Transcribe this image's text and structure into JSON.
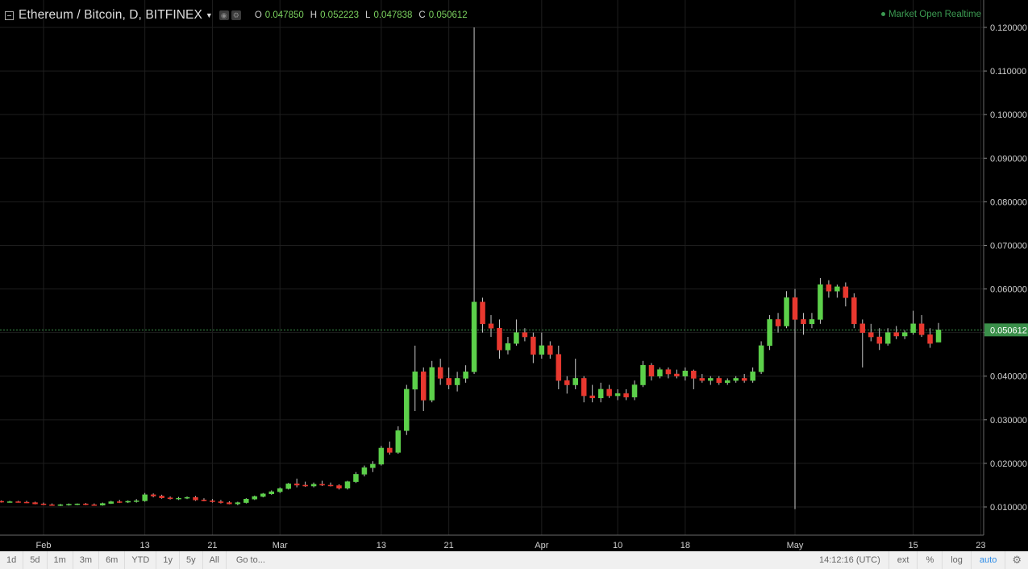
{
  "legend": {
    "symbol": "Ethereum / Bitcoin, D, BITFINEX",
    "open_label": "O",
    "open": "0.047850",
    "high_label": "H",
    "high": "0.052223",
    "low_label": "L",
    "low": "0.047838",
    "close_label": "C",
    "close": "0.050612"
  },
  "market_status": "Market Open Realtime",
  "last_price_label": "0.050612",
  "colors": {
    "background": "#000000",
    "grid": "#1e1e1e",
    "up": "#5cd04a",
    "down": "#e8382f",
    "wick": "#c8c8c8",
    "axis_text": "#d0d0d0",
    "last_price_tag": "#3a8f4a"
  },
  "bottom_bar": {
    "ranges": [
      "1d",
      "5d",
      "1m",
      "3m",
      "6m",
      "YTD",
      "1y",
      "5y",
      "All"
    ],
    "goto": "Go to...",
    "clock": "14:12:16 (UTC)",
    "ext": "ext",
    "percent": "%",
    "log": "log",
    "auto": "auto"
  },
  "chart_data": {
    "type": "candlestick",
    "title": "Ethereum / Bitcoin, D, BITFINEX",
    "ylim": [
      0.0035,
      0.1205
    ],
    "y_ticks": [
      "0.010000",
      "0.020000",
      "0.030000",
      "0.040000",
      "0.050000",
      "0.060000",
      "0.070000",
      "0.080000",
      "0.090000",
      "0.100000",
      "0.110000",
      "0.120000"
    ],
    "y_tick_values": [
      0.01,
      0.02,
      0.03,
      0.04,
      0.05,
      0.06,
      0.07,
      0.08,
      0.09,
      0.1,
      0.11,
      0.12
    ],
    "x_ticks": [
      {
        "label": "Feb",
        "date": "2017-02-01"
      },
      {
        "label": "13",
        "date": "2017-02-13"
      },
      {
        "label": "21",
        "date": "2017-02-21"
      },
      {
        "label": "Mar",
        "date": "2017-03-01"
      },
      {
        "label": "13",
        "date": "2017-03-13"
      },
      {
        "label": "21",
        "date": "2017-03-21"
      },
      {
        "label": "Apr",
        "date": "2017-04-01"
      },
      {
        "label": "10",
        "date": "2017-04-10"
      },
      {
        "label": "18",
        "date": "2017-04-18"
      },
      {
        "label": "May",
        "date": "2017-05-01"
      },
      {
        "label": "15",
        "date": "2017-05-15"
      },
      {
        "label": "23",
        "date": "2017-05-23"
      }
    ],
    "x_range": [
      "2017-01-27",
      "2017-05-24"
    ],
    "grid": true,
    "last_price": 0.050612,
    "columns": [
      "date",
      "open",
      "high",
      "low",
      "close"
    ],
    "candles": [
      [
        "2017-01-27",
        0.0113,
        0.0115,
        0.011,
        0.0111
      ],
      [
        "2017-01-28",
        0.0111,
        0.0114,
        0.011,
        0.0112
      ],
      [
        "2017-01-29",
        0.0112,
        0.0114,
        0.011,
        0.0111
      ],
      [
        "2017-01-30",
        0.0111,
        0.0114,
        0.0109,
        0.011
      ],
      [
        "2017-01-31",
        0.011,
        0.0112,
        0.0106,
        0.0107
      ],
      [
        "2017-02-01",
        0.0107,
        0.011,
        0.0104,
        0.0105
      ],
      [
        "2017-02-02",
        0.0105,
        0.0108,
        0.0103,
        0.0104
      ],
      [
        "2017-02-03",
        0.0104,
        0.0107,
        0.0102,
        0.0105
      ],
      [
        "2017-02-04",
        0.0105,
        0.0108,
        0.0103,
        0.0106
      ],
      [
        "2017-02-05",
        0.0106,
        0.0108,
        0.0104,
        0.0107
      ],
      [
        "2017-02-06",
        0.0107,
        0.0109,
        0.0104,
        0.0105
      ],
      [
        "2017-02-07",
        0.0105,
        0.0108,
        0.0103,
        0.0104
      ],
      [
        "2017-02-08",
        0.0104,
        0.011,
        0.0103,
        0.0108
      ],
      [
        "2017-02-09",
        0.0108,
        0.0114,
        0.0107,
        0.0112
      ],
      [
        "2017-02-10",
        0.0112,
        0.0116,
        0.0109,
        0.0111
      ],
      [
        "2017-02-11",
        0.0111,
        0.0115,
        0.0109,
        0.0113
      ],
      [
        "2017-02-12",
        0.0113,
        0.0118,
        0.011,
        0.0114
      ],
      [
        "2017-02-13",
        0.0114,
        0.0132,
        0.0112,
        0.0128
      ],
      [
        "2017-02-14",
        0.0128,
        0.0131,
        0.0122,
        0.0125
      ],
      [
        "2017-02-15",
        0.0125,
        0.0128,
        0.0119,
        0.0121
      ],
      [
        "2017-02-16",
        0.0121,
        0.0124,
        0.0117,
        0.0119
      ],
      [
        "2017-02-17",
        0.0119,
        0.0123,
        0.0116,
        0.012
      ],
      [
        "2017-02-18",
        0.012,
        0.0124,
        0.0118,
        0.0122
      ],
      [
        "2017-02-19",
        0.0122,
        0.0125,
        0.0114,
        0.0116
      ],
      [
        "2017-02-20",
        0.0116,
        0.012,
        0.0113,
        0.0114
      ],
      [
        "2017-02-21",
        0.0114,
        0.0118,
        0.011,
        0.0112
      ],
      [
        "2017-02-22",
        0.0112,
        0.0116,
        0.0108,
        0.011
      ],
      [
        "2017-02-23",
        0.011,
        0.0113,
        0.0106,
        0.0107
      ],
      [
        "2017-02-24",
        0.0107,
        0.0112,
        0.0104,
        0.011
      ],
      [
        "2017-02-25",
        0.011,
        0.012,
        0.0108,
        0.0118
      ],
      [
        "2017-02-26",
        0.0118,
        0.0126,
        0.0116,
        0.0124
      ],
      [
        "2017-02-27",
        0.0124,
        0.0132,
        0.0122,
        0.013
      ],
      [
        "2017-02-28",
        0.013,
        0.0138,
        0.0128,
        0.0135
      ],
      [
        "2017-03-01",
        0.0135,
        0.0145,
        0.0132,
        0.0142
      ],
      [
        "2017-03-02",
        0.0142,
        0.0155,
        0.014,
        0.0153
      ],
      [
        "2017-03-03",
        0.0153,
        0.0165,
        0.0145,
        0.015
      ],
      [
        "2017-03-04",
        0.015,
        0.0158,
        0.0146,
        0.0148
      ],
      [
        "2017-03-05",
        0.0148,
        0.0156,
        0.0145,
        0.0152
      ],
      [
        "2017-03-06",
        0.0152,
        0.016,
        0.0148,
        0.015
      ],
      [
        "2017-03-07",
        0.015,
        0.0156,
        0.0147,
        0.0149
      ],
      [
        "2017-03-08",
        0.0149,
        0.0152,
        0.014,
        0.0143
      ],
      [
        "2017-03-09",
        0.0143,
        0.016,
        0.014,
        0.0158
      ],
      [
        "2017-03-10",
        0.0158,
        0.018,
        0.0155,
        0.0175
      ],
      [
        "2017-03-11",
        0.0175,
        0.0195,
        0.017,
        0.019
      ],
      [
        "2017-03-12",
        0.019,
        0.0205,
        0.018,
        0.0198
      ],
      [
        "2017-03-13",
        0.0198,
        0.024,
        0.0195,
        0.0235
      ],
      [
        "2017-03-14",
        0.0235,
        0.025,
        0.022,
        0.0225
      ],
      [
        "2017-03-15",
        0.0225,
        0.0285,
        0.0222,
        0.0275
      ],
      [
        "2017-03-16",
        0.0275,
        0.038,
        0.0265,
        0.037
      ],
      [
        "2017-03-17",
        0.037,
        0.047,
        0.032,
        0.041
      ],
      [
        "2017-03-18",
        0.041,
        0.042,
        0.032,
        0.0345
      ],
      [
        "2017-03-19",
        0.0345,
        0.0435,
        0.034,
        0.042
      ],
      [
        "2017-03-20",
        0.042,
        0.044,
        0.038,
        0.0395
      ],
      [
        "2017-03-21",
        0.0395,
        0.042,
        0.037,
        0.038
      ],
      [
        "2017-03-22",
        0.038,
        0.041,
        0.0365,
        0.0395
      ],
      [
        "2017-03-23",
        0.0395,
        0.0425,
        0.0385,
        0.041
      ],
      [
        "2017-03-24",
        0.041,
        0.12,
        0.0405,
        0.057
      ],
      [
        "2017-03-25",
        0.057,
        0.058,
        0.05,
        0.052
      ],
      [
        "2017-03-26",
        0.052,
        0.054,
        0.049,
        0.051
      ],
      [
        "2017-03-27",
        0.051,
        0.053,
        0.044,
        0.046
      ],
      [
        "2017-03-28",
        0.046,
        0.049,
        0.045,
        0.0475
      ],
      [
        "2017-03-29",
        0.0475,
        0.053,
        0.047,
        0.05
      ],
      [
        "2017-03-30",
        0.05,
        0.051,
        0.048,
        0.049
      ],
      [
        "2017-03-31",
        0.049,
        0.05,
        0.043,
        0.045
      ],
      [
        "2017-04-01",
        0.045,
        0.05,
        0.044,
        0.047
      ],
      [
        "2017-04-02",
        0.047,
        0.048,
        0.044,
        0.045
      ],
      [
        "2017-04-03",
        0.045,
        0.047,
        0.037,
        0.039
      ],
      [
        "2017-04-04",
        0.039,
        0.04,
        0.036,
        0.038
      ],
      [
        "2017-04-05",
        0.038,
        0.044,
        0.037,
        0.0395
      ],
      [
        "2017-04-06",
        0.0395,
        0.04,
        0.034,
        0.0355
      ],
      [
        "2017-04-07",
        0.0355,
        0.038,
        0.034,
        0.035
      ],
      [
        "2017-04-08",
        0.035,
        0.0385,
        0.034,
        0.037
      ],
      [
        "2017-04-09",
        0.037,
        0.038,
        0.035,
        0.0355
      ],
      [
        "2017-04-10",
        0.0355,
        0.037,
        0.0345,
        0.036
      ],
      [
        "2017-04-11",
        0.036,
        0.037,
        0.0345,
        0.0352
      ],
      [
        "2017-04-12",
        0.0352,
        0.039,
        0.0345,
        0.038
      ],
      [
        "2017-04-13",
        0.038,
        0.0435,
        0.0375,
        0.0425
      ],
      [
        "2017-04-14",
        0.0425,
        0.043,
        0.039,
        0.04
      ],
      [
        "2017-04-15",
        0.04,
        0.042,
        0.0395,
        0.0415
      ],
      [
        "2017-04-16",
        0.0415,
        0.042,
        0.0395,
        0.0405
      ],
      [
        "2017-04-17",
        0.0405,
        0.0415,
        0.0395,
        0.04
      ],
      [
        "2017-04-18",
        0.04,
        0.042,
        0.039,
        0.0412
      ],
      [
        "2017-04-19",
        0.0412,
        0.0415,
        0.037,
        0.0395
      ],
      [
        "2017-04-20",
        0.0395,
        0.0405,
        0.0385,
        0.039
      ],
      [
        "2017-04-21",
        0.039,
        0.04,
        0.038,
        0.0395
      ],
      [
        "2017-04-22",
        0.0395,
        0.04,
        0.038,
        0.0385
      ],
      [
        "2017-04-23",
        0.0385,
        0.0395,
        0.038,
        0.039
      ],
      [
        "2017-04-24",
        0.039,
        0.04,
        0.0385,
        0.0395
      ],
      [
        "2017-04-25",
        0.0395,
        0.0405,
        0.0385,
        0.039
      ],
      [
        "2017-04-26",
        0.039,
        0.042,
        0.0385,
        0.041
      ],
      [
        "2017-04-27",
        0.041,
        0.048,
        0.0405,
        0.047
      ],
      [
        "2017-04-28",
        0.047,
        0.054,
        0.046,
        0.053
      ],
      [
        "2017-04-29",
        0.053,
        0.0545,
        0.05,
        0.0515
      ],
      [
        "2017-04-30",
        0.0515,
        0.0595,
        0.051,
        0.058
      ],
      [
        "2017-05-01",
        0.058,
        0.06,
        0.0095,
        0.053
      ],
      [
        "2017-05-02",
        0.053,
        0.0545,
        0.0495,
        0.052
      ],
      [
        "2017-05-03",
        0.052,
        0.0545,
        0.051,
        0.053
      ],
      [
        "2017-05-04",
        0.053,
        0.0625,
        0.052,
        0.061
      ],
      [
        "2017-05-05",
        0.061,
        0.062,
        0.058,
        0.0595
      ],
      [
        "2017-05-06",
        0.0595,
        0.061,
        0.058,
        0.0605
      ],
      [
        "2017-05-07",
        0.0605,
        0.0615,
        0.056,
        0.058
      ],
      [
        "2017-05-08",
        0.058,
        0.059,
        0.051,
        0.052
      ],
      [
        "2017-05-09",
        0.052,
        0.053,
        0.042,
        0.05
      ],
      [
        "2017-05-10",
        0.05,
        0.052,
        0.048,
        0.049
      ],
      [
        "2017-05-11",
        0.049,
        0.051,
        0.046,
        0.0475
      ],
      [
        "2017-05-12",
        0.0475,
        0.051,
        0.047,
        0.05
      ],
      [
        "2017-05-13",
        0.05,
        0.0515,
        0.0485,
        0.0492
      ],
      [
        "2017-05-14",
        0.0492,
        0.0505,
        0.0485,
        0.05
      ],
      [
        "2017-05-15",
        0.05,
        0.055,
        0.0495,
        0.052
      ],
      [
        "2017-05-16",
        0.052,
        0.054,
        0.049,
        0.0495
      ],
      [
        "2017-05-17",
        0.0495,
        0.051,
        0.0465,
        0.0475
      ],
      [
        "2017-05-18",
        0.0478,
        0.0522,
        0.0478,
        0.0506
      ]
    ]
  }
}
